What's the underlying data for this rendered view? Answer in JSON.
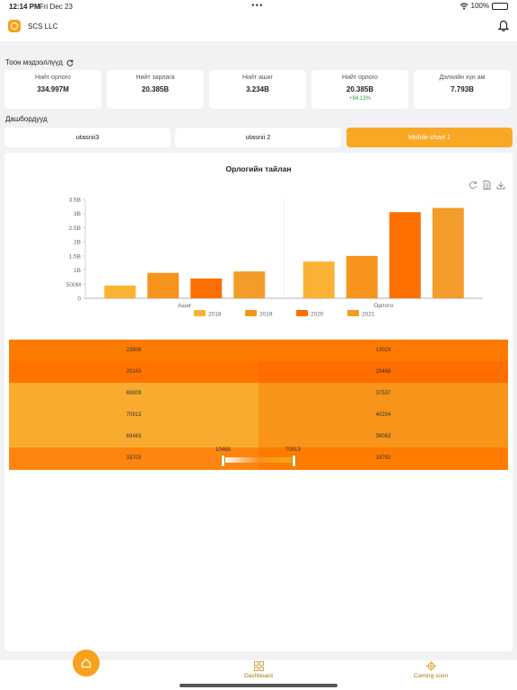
{
  "status": {
    "time": "12:14 PM",
    "date": "Fri Dec 23",
    "battery": "100%"
  },
  "header": {
    "company": "SCS LLC"
  },
  "stats_section": {
    "title": "Тоон мэдээллүүд"
  },
  "stats": [
    {
      "label": "Нийт орлого",
      "value": "334.997M",
      "change": ""
    },
    {
      "label": "Нийт зарлага",
      "value": "20.385B",
      "change": ""
    },
    {
      "label": "Нийт ашиг",
      "value": "3.234B",
      "change": ""
    },
    {
      "label": "Нийт орлого",
      "value": "20.385B",
      "change": "+84.13%"
    },
    {
      "label": "Дэлхийн хүн ам",
      "value": "7.793B",
      "change": ""
    }
  ],
  "dashboards_section": {
    "title": "Дашбордууд"
  },
  "tabs": [
    {
      "label": "utasnii3",
      "active": false
    },
    {
      "label": "utasnii 2",
      "active": false
    },
    {
      "label": "Mobile chart 1",
      "active": true
    }
  ],
  "chart_data": {
    "type": "bar",
    "title": "Орлогийн тайлан",
    "categories": [
      "Ашиг",
      "Орлого"
    ],
    "series": [
      {
        "name": "2018",
        "color": "#f9b233",
        "values": [
          0.45,
          1.3
        ]
      },
      {
        "name": "2019",
        "color": "#f7941d",
        "values": [
          0.9,
          1.5
        ]
      },
      {
        "name": "2020",
        "color": "#ff6f00",
        "values": [
          0.7,
          3.05
        ]
      },
      {
        "name": "2021",
        "color": "#f39c2a",
        "values": [
          0.95,
          3.2
        ]
      }
    ],
    "yticks": [
      "0",
      "500M",
      "1B",
      "1.5B",
      "2B",
      "2.5B",
      "3B",
      "3.5B"
    ],
    "ylim": [
      0,
      3.5
    ],
    "legend_position": "bottom",
    "grid": false
  },
  "heatmap": {
    "rows": [
      {
        "left": "23908",
        "right": "13023",
        "leftColor": "#ff7a00",
        "rightColor": "#ff7800"
      },
      {
        "left": "20143",
        "right": "10468",
        "leftColor": "#ff7400",
        "rightColor": "#ff6c00"
      },
      {
        "left": "69809",
        "right": "37537",
        "leftColor": "#f9ab2e",
        "rightColor": "#f89419"
      },
      {
        "left": "70913",
        "right": "40204",
        "leftColor": "#f9ab2e",
        "rightColor": "#f89419"
      },
      {
        "left": "69483",
        "right": "39063",
        "leftColor": "#f9ab2e",
        "rightColor": "#f89419"
      },
      {
        "left": "33703",
        "right": "18792",
        "leftColor": "#ff8410",
        "rightColor": "#ff7c00"
      }
    ],
    "range_min": "10468",
    "range_max": "70913"
  },
  "bottom_nav": {
    "home_icon": "home-icon",
    "dashboard_label": "Dashboard",
    "coming_soon_label": "Coming soon"
  },
  "colors": {
    "accent": "#f9a825",
    "brand": "#f7a21b"
  }
}
